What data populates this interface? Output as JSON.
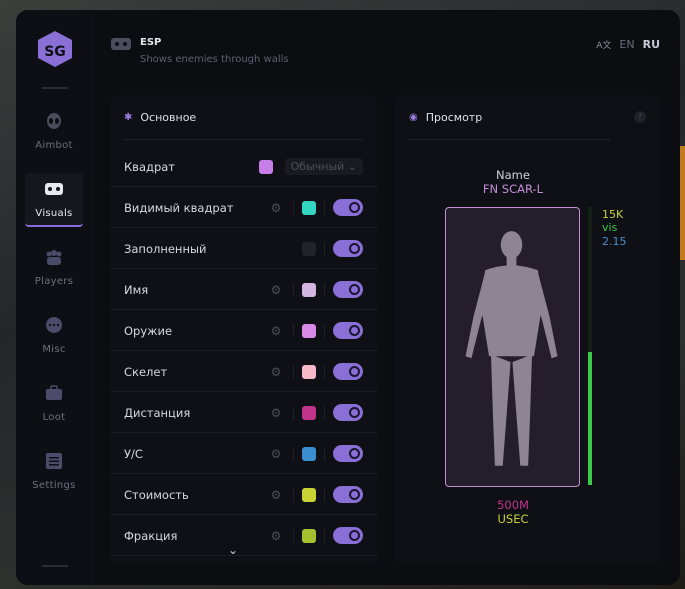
{
  "header": {
    "title": "ESP",
    "subtitle": "Shows enemies through walls",
    "lang_icon": "translate-icon",
    "languages": [
      "EN",
      "RU"
    ],
    "active_language": "RU"
  },
  "sidebar": {
    "items": [
      {
        "label": "Aimbot",
        "icon": "alien-icon"
      },
      {
        "label": "Visuals",
        "icon": "vr-headset-icon",
        "active": true
      },
      {
        "label": "Players",
        "icon": "users-icon"
      },
      {
        "label": "Misc",
        "icon": "dots-icon"
      },
      {
        "label": "Loot",
        "icon": "briefcase-icon"
      },
      {
        "label": "Settings",
        "icon": "list-icon"
      }
    ]
  },
  "main": {
    "title": "Основное",
    "rows": [
      {
        "label": "Квадрат",
        "color": "#c77ee8",
        "select": "Обычный"
      },
      {
        "label": "Видимый квадрат",
        "color": "#33d6c0",
        "gear": true,
        "on": true
      },
      {
        "label": "Заполненный",
        "color": "#222329",
        "on": true
      },
      {
        "label": "Имя",
        "color": "#d4b4e0",
        "gear": true,
        "on": true
      },
      {
        "label": "Оружие",
        "color": "#d88ae8",
        "gear": true,
        "on": true
      },
      {
        "label": "Скелет",
        "color": "#f7b8c8",
        "gear": true,
        "on": true
      },
      {
        "label": "Дистанция",
        "color": "#c0358a",
        "gear": true,
        "on": true
      },
      {
        "label": "У/С",
        "color": "#3b8fd0",
        "gear": true,
        "on": true
      },
      {
        "label": "Стоимость",
        "color": "#c9d235",
        "gear": true,
        "on": true
      },
      {
        "label": "Фракция",
        "color": "#a8c030",
        "gear": true,
        "on": true
      }
    ]
  },
  "preview": {
    "title": "Просмотр",
    "help": "?",
    "name": "Name",
    "weapon": "FN SCAR-L",
    "value": "15K",
    "visible": "vis",
    "kd": "2.15",
    "distance": "500M",
    "faction": "USEC",
    "health_percent": 48,
    "colors": {
      "name": "#d0d0dc",
      "weapon": "#c58fd8",
      "value": "#c9d235",
      "visible": "#3cc84a",
      "kd": "#4a8fd0",
      "distance": "#c0358a",
      "faction": "#c9d235"
    }
  }
}
